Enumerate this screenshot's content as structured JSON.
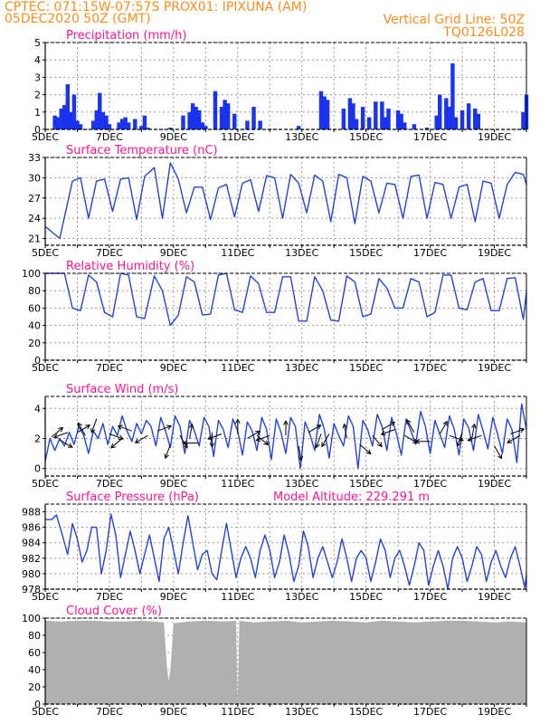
{
  "header": {
    "line1": "CPTEC:    071:15W-07:57S    PROX01: IPIXUNA (AM)",
    "line2": "05DEC2020 50Z (GMT)",
    "vgrid": "Vertical Grid Line: 50Z",
    "model": "TQ0126L028"
  },
  "colors": {
    "title": "#ff1493",
    "header": "#ff8c1a",
    "line": "#2244dd",
    "bars": "#1a33ee",
    "cloud": "#b0b0b0"
  },
  "x_tick_labels": [
    "5DEC",
    "7DEC",
    "9DEC",
    "11DEC",
    "13DEC",
    "15DEC",
    "17DEC",
    "19DEC"
  ],
  "x_range_days": [
    5,
    20
  ],
  "panels": [
    {
      "key": "precip",
      "title": "Precipitation (mm/h)",
      "yticks": [
        "0",
        "1",
        "2",
        "3",
        "4",
        "5"
      ],
      "ymin": 0,
      "ymax": 5
    },
    {
      "key": "temp",
      "title": "Surface Temperature (nC)",
      "yticks": [
        "21",
        "24",
        "27",
        "30",
        "33"
      ],
      "ymin": 20,
      "ymax": 33
    },
    {
      "key": "rh",
      "title": "Relative Humidity (%)",
      "yticks": [
        "0",
        "20",
        "40",
        "60",
        "80",
        "100"
      ],
      "ymin": 0,
      "ymax": 100
    },
    {
      "key": "wind",
      "title": "Surface Wind (m/s)",
      "yticks": [
        "0",
        "2",
        "4"
      ],
      "ymin": -0.5,
      "ymax": 4.8
    },
    {
      "key": "press",
      "title": "Surface Pressure (hPa)",
      "extra": "Model Altitude: 229.291 m",
      "yticks": [
        "978",
        "980",
        "982",
        "984",
        "986",
        "988"
      ],
      "ymin": 978,
      "ymax": 989
    },
    {
      "key": "cloud",
      "title": "Cloud Cover (%)",
      "yticks": [
        "0",
        "20",
        "40",
        "60",
        "80",
        "100"
      ],
      "ymin": 0,
      "ymax": 100
    }
  ],
  "chart_data": [
    {
      "type": "bar",
      "title": "Precipitation (mm/h)",
      "ylim": [
        0,
        5
      ],
      "x_days": [
        5.3,
        5.4,
        5.5,
        5.6,
        5.7,
        5.8,
        5.9,
        6.0,
        6.1,
        6.5,
        6.6,
        6.7,
        6.8,
        6.9,
        7.0,
        7.3,
        7.4,
        7.5,
        7.6,
        7.8,
        8.0,
        8.1,
        8.2,
        8.9,
        9.3,
        9.5,
        9.6,
        9.7,
        9.8,
        9.9,
        10.0,
        10.3,
        10.5,
        10.6,
        10.7,
        10.9,
        11.3,
        11.5,
        11.7,
        12.9,
        13.6,
        13.7,
        13.8,
        14.3,
        14.5,
        14.6,
        14.7,
        14.9,
        15.1,
        15.3,
        15.5,
        15.6,
        15.7,
        16.0,
        16.1,
        16.2,
        16.5,
        16.9,
        17.2,
        17.3,
        17.5,
        17.6,
        17.7,
        17.8,
        18.0,
        18.2,
        18.4,
        18.5,
        19.9,
        20.0
      ],
      "values": [
        0.8,
        0.7,
        1.2,
        1.4,
        2.6,
        1.0,
        2.0,
        0.5,
        0.3,
        0.5,
        1.1,
        2.1,
        1.0,
        0.8,
        0.3,
        0.4,
        0.6,
        0.7,
        0.4,
        0.6,
        0.2,
        0.8,
        0.1,
        0.1,
        0.8,
        1.0,
        1.5,
        1.3,
        1.1,
        0.4,
        0.2,
        2.2,
        1.3,
        1.7,
        1.5,
        0.9,
        0.5,
        1.3,
        0.5,
        0.2,
        2.2,
        1.9,
        1.7,
        1.2,
        1.8,
        1.5,
        0.6,
        1.3,
        0.7,
        1.6,
        1.6,
        0.7,
        1.2,
        1.1,
        0.9,
        0.4,
        0.3,
        0.1,
        0.8,
        2.0,
        1.8,
        1.3,
        3.8,
        0.7,
        1.1,
        1.5,
        1.2,
        0.9,
        1.0,
        2.0
      ]
    },
    {
      "type": "line",
      "title": "Surface Temperature (nC)",
      "ylim": [
        20,
        33
      ],
      "x_days": [
        5.0,
        5.25,
        5.45,
        5.85,
        6.1,
        6.35,
        6.6,
        6.85,
        7.1,
        7.35,
        7.6,
        7.85,
        8.1,
        8.4,
        8.65,
        8.9,
        9.15,
        9.4,
        9.65,
        9.9,
        10.15,
        10.4,
        10.65,
        10.9,
        11.15,
        11.4,
        11.65,
        11.9,
        12.15,
        12.4,
        12.65,
        12.9,
        13.15,
        13.4,
        13.65,
        13.9,
        14.15,
        14.4,
        14.65,
        14.9,
        15.15,
        15.4,
        15.65,
        15.9,
        16.15,
        16.4,
        16.65,
        16.9,
        17.15,
        17.4,
        17.65,
        17.9,
        18.15,
        18.4,
        18.65,
        18.9,
        19.15,
        19.4,
        19.65,
        19.9,
        20.0
      ],
      "values": [
        22.8,
        21.8,
        21.0,
        29.5,
        30.0,
        24.0,
        29.5,
        29.8,
        25.0,
        29.8,
        30.0,
        23.8,
        30.2,
        31.5,
        24.0,
        32.2,
        29.8,
        24.8,
        28.6,
        28.6,
        23.8,
        28.5,
        29.0,
        24.2,
        29.2,
        29.7,
        25.0,
        30.3,
        30.0,
        24.0,
        30.5,
        29.2,
        24.8,
        30.4,
        29.5,
        23.5,
        30.5,
        30.0,
        23.2,
        30.2,
        29.5,
        24.8,
        29.2,
        29.0,
        24.0,
        30.2,
        30.4,
        24.0,
        29.3,
        29.0,
        24.0,
        28.6,
        29.0,
        23.5,
        29.5,
        29.2,
        24.0,
        29.0,
        30.8,
        30.5,
        29.0
      ]
    },
    {
      "type": "line",
      "title": "Relative Humidity (%)",
      "ylim": [
        0,
        100
      ],
      "x_days": [
        5.0,
        5.3,
        5.6,
        5.85,
        6.1,
        6.35,
        6.6,
        6.85,
        7.1,
        7.35,
        7.6,
        7.85,
        8.1,
        8.4,
        8.65,
        8.9,
        9.15,
        9.4,
        9.65,
        9.9,
        10.15,
        10.4,
        10.65,
        10.9,
        11.15,
        11.4,
        11.65,
        11.9,
        12.15,
        12.4,
        12.65,
        12.9,
        13.15,
        13.4,
        13.65,
        13.9,
        14.15,
        14.4,
        14.65,
        14.9,
        15.15,
        15.4,
        15.65,
        15.9,
        16.15,
        16.4,
        16.65,
        16.9,
        17.15,
        17.4,
        17.65,
        17.9,
        18.15,
        18.4,
        18.65,
        18.9,
        19.15,
        19.4,
        19.65,
        19.9,
        20.0
      ],
      "values": [
        100,
        100,
        100,
        60,
        57,
        98,
        90,
        55,
        50,
        100,
        98,
        50,
        48,
        97,
        80,
        40,
        52,
        96,
        90,
        52,
        53,
        98,
        100,
        58,
        55,
        97,
        88,
        55,
        55,
        96,
        96,
        45,
        45,
        96,
        80,
        46,
        45,
        97,
        90,
        50,
        53,
        94,
        83,
        60,
        60,
        94,
        90,
        50,
        55,
        98,
        98,
        60,
        58,
        90,
        94,
        57,
        57,
        94,
        95,
        47,
        78
      ]
    },
    {
      "type": "line",
      "title": "Surface Wind (m/s)",
      "ylim": [
        -0.5,
        4.8
      ],
      "x_days": [
        5.0,
        5.15,
        5.3,
        5.45,
        5.6,
        5.75,
        5.9,
        6.05,
        6.2,
        6.35,
        6.5,
        6.65,
        6.8,
        6.95,
        7.1,
        7.25,
        7.4,
        7.55,
        7.7,
        7.85,
        8.0,
        8.15,
        8.3,
        8.45,
        8.6,
        8.75,
        8.9,
        9.05,
        9.2,
        9.35,
        9.5,
        9.65,
        9.8,
        9.95,
        10.1,
        10.25,
        10.4,
        10.55,
        10.7,
        10.85,
        11.0,
        11.15,
        11.3,
        11.45,
        11.6,
        11.75,
        11.9,
        12.05,
        12.2,
        12.35,
        12.5,
        12.65,
        12.8,
        12.95,
        13.1,
        13.25,
        13.4,
        13.55,
        13.7,
        13.85,
        14.0,
        14.15,
        14.3,
        14.45,
        14.6,
        14.75,
        14.9,
        15.05,
        15.2,
        15.35,
        15.5,
        15.65,
        15.8,
        15.95,
        16.1,
        16.25,
        16.4,
        16.55,
        16.7,
        16.85,
        17.0,
        17.15,
        17.3,
        17.45,
        17.6,
        17.75,
        17.9,
        18.05,
        18.2,
        18.35,
        18.5,
        18.65,
        18.8,
        18.95,
        19.1,
        19.25,
        19.4,
        19.55,
        19.7,
        19.85,
        20.0
      ],
      "values": [
        0.5,
        2.0,
        1.2,
        2.0,
        1.5,
        2.4,
        1.6,
        2.8,
        2.2,
        1.0,
        2.5,
        2.0,
        3.0,
        1.6,
        2.8,
        2.2,
        3.5,
        2.5,
        1.8,
        3.0,
        2.3,
        3.2,
        2.8,
        1.5,
        3.4,
        2.5,
        1.4,
        3.5,
        2.8,
        1.0,
        3.2,
        2.5,
        1.5,
        3.4,
        2.8,
        0.8,
        3.2,
        2.6,
        1.4,
        3.3,
        2.5,
        0.9,
        3.1,
        2.5,
        1.2,
        3.4,
        2.6,
        0.6,
        3.3,
        2.4,
        1.0,
        3.4,
        2.8,
        0.0,
        3.1,
        2.3,
        1.2,
        3.6,
        2.6,
        0.7,
        3.0,
        2.2,
        1.5,
        3.5,
        2.8,
        0.0,
        3.2,
        2.6,
        1.5,
        3.6,
        2.8,
        1.2,
        3.4,
        2.3,
        0.9,
        3.3,
        2.5,
        1.6,
        3.8,
        2.8,
        1.0,
        3.2,
        2.3,
        1.4,
        3.5,
        2.6,
        0.9,
        3.3,
        2.7,
        1.2,
        3.6,
        2.5,
        1.3,
        3.4,
        2.3,
        1.0,
        3.3,
        2.6,
        0.4,
        4.3,
        2.6
      ],
      "arrows": [
        [
          5.2,
          2.1,
          40
        ],
        [
          5.45,
          1.9,
          -30
        ],
        [
          5.7,
          2.4,
          200
        ],
        [
          6.0,
          2.4,
          30
        ],
        [
          6.25,
          2.2,
          120
        ],
        [
          6.6,
          3.3,
          250
        ],
        [
          7.0,
          2.3,
          -20
        ],
        [
          7.4,
          2.0,
          220
        ],
        [
          7.7,
          2.5,
          160
        ],
        [
          8.2,
          2.2,
          -150
        ],
        [
          8.5,
          2.5,
          20
        ],
        [
          8.9,
          1.6,
          250
        ],
        [
          9.2,
          2.2,
          -60
        ],
        [
          9.5,
          2.0,
          80
        ],
        [
          9.75,
          1.7,
          180
        ],
        [
          10.2,
          2.4,
          270
        ],
        [
          10.5,
          2.3,
          200
        ],
        [
          11.0,
          2.3,
          90
        ],
        [
          11.3,
          2.0,
          30
        ],
        [
          11.6,
          2.2,
          -40
        ],
        [
          12.0,
          2.2,
          200
        ],
        [
          12.5,
          2.2,
          90
        ],
        [
          12.9,
          1.5,
          -80
        ],
        [
          13.2,
          2.4,
          30
        ],
        [
          13.6,
          2.3,
          250
        ],
        [
          13.85,
          2.3,
          -120
        ],
        [
          14.4,
          2.0,
          100
        ],
        [
          14.8,
          1.6,
          -40
        ],
        [
          15.2,
          2.2,
          -50
        ],
        [
          15.5,
          2.6,
          30
        ],
        [
          15.9,
          2.6,
          200
        ],
        [
          16.2,
          2.2,
          -30
        ],
        [
          16.5,
          2.4,
          120
        ],
        [
          17.0,
          1.8,
          180
        ],
        [
          17.3,
          2.3,
          60
        ],
        [
          17.6,
          2.2,
          -20
        ],
        [
          18.0,
          2.4,
          250
        ],
        [
          18.3,
          2.0,
          80
        ],
        [
          18.6,
          2.2,
          200
        ],
        [
          19.0,
          1.5,
          -60
        ],
        [
          19.5,
          2.3,
          20
        ],
        [
          19.8,
          2.2,
          -150
        ]
      ]
    },
    {
      "type": "line",
      "title": "Surface Pressure (hPa)",
      "ylim": [
        978,
        989
      ],
      "x_days": [
        5.0,
        5.2,
        5.35,
        5.5,
        5.7,
        5.85,
        6.0,
        6.15,
        6.3,
        6.45,
        6.6,
        6.75,
        6.9,
        7.05,
        7.2,
        7.35,
        7.5,
        7.65,
        7.8,
        7.95,
        8.1,
        8.25,
        8.4,
        8.55,
        8.7,
        8.85,
        9.0,
        9.15,
        9.3,
        9.45,
        9.6,
        9.75,
        9.9,
        10.05,
        10.2,
        10.35,
        10.5,
        10.65,
        10.8,
        10.95,
        11.1,
        11.25,
        11.4,
        11.55,
        11.7,
        11.85,
        12.0,
        12.15,
        12.3,
        12.45,
        12.6,
        12.75,
        12.9,
        13.05,
        13.2,
        13.35,
        13.5,
        13.65,
        13.8,
        13.95,
        14.1,
        14.25,
        14.4,
        14.55,
        14.7,
        14.85,
        15.0,
        15.15,
        15.3,
        15.45,
        15.6,
        15.75,
        15.9,
        16.05,
        16.2,
        16.35,
        16.5,
        16.65,
        16.8,
        16.95,
        17.1,
        17.25,
        17.4,
        17.55,
        17.7,
        17.85,
        18.0,
        18.15,
        18.3,
        18.45,
        18.6,
        18.75,
        18.9,
        19.05,
        19.2,
        19.35,
        19.5,
        19.65,
        19.8,
        19.95,
        20.0
      ],
      "values": [
        987.0,
        987.0,
        987.6,
        985.5,
        982.5,
        986.5,
        984.5,
        981.5,
        983.0,
        986.0,
        986.0,
        980.0,
        983.0,
        987.7,
        985.0,
        979.5,
        982.5,
        985.5,
        983.0,
        980.0,
        982.5,
        985.0,
        982.0,
        979.0,
        984.5,
        986.0,
        983.0,
        980.0,
        984.0,
        987.5,
        984.0,
        980.5,
        982.5,
        983.0,
        980.0,
        979.2,
        983.0,
        986.5,
        983.0,
        979.5,
        982.0,
        983.5,
        982.0,
        979.5,
        983.0,
        985.0,
        983.0,
        979.5,
        981.5,
        985.0,
        982.5,
        979.0,
        981.0,
        985.5,
        983.5,
        979.5,
        982.0,
        983.5,
        981.5,
        979.5,
        981.5,
        984.5,
        982.0,
        979.0,
        982.0,
        983.0,
        982.0,
        979.0,
        981.5,
        984.5,
        983.0,
        979.5,
        982.0,
        983.0,
        981.0,
        978.5,
        981.0,
        984.0,
        983.0,
        978.5,
        981.0,
        983.0,
        981.0,
        978.0,
        982.0,
        983.5,
        982.0,
        979.0,
        981.0,
        983.5,
        982.5,
        979.0,
        981.5,
        983.0,
        981.0,
        979.5,
        982.0,
        983.5,
        981.0,
        978.2,
        979.8
      ]
    },
    {
      "type": "area",
      "title": "Cloud Cover (%)",
      "ylim": [
        0,
        100
      ],
      "x_days": [
        5.0,
        5.5,
        6.0,
        6.5,
        7.0,
        7.5,
        8.0,
        8.7,
        8.8,
        8.85,
        8.9,
        9.0,
        9.5,
        10.0,
        10.5,
        10.95,
        11.0,
        11.05,
        11.5,
        12.0,
        12.5,
        13.0,
        13.5,
        14.0,
        14.5,
        15.0,
        15.5,
        16.0,
        16.5,
        17.0,
        17.5,
        18.0,
        18.5,
        19.0,
        19.5,
        20.0
      ],
      "values": [
        97,
        96,
        97,
        97,
        96,
        96,
        97,
        95,
        40,
        27,
        40,
        94,
        96,
        97,
        96,
        97,
        0,
        97,
        95,
        96,
        97,
        95,
        96,
        97,
        96,
        95,
        97,
        96,
        95,
        96,
        97,
        97,
        96,
        95,
        96,
        95
      ]
    }
  ]
}
